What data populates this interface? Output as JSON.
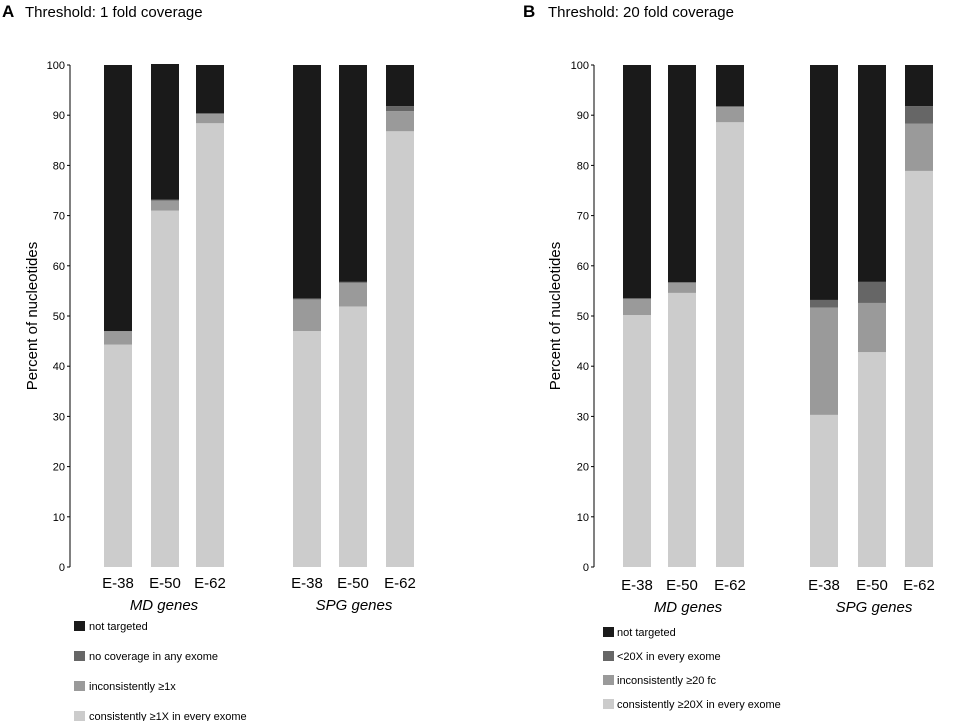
{
  "chart_data": [
    {
      "type": "bar",
      "stacked": true,
      "panel_letter": "A",
      "title": "Threshold: 1 fold coverage",
      "ylabel": "Percent of nucleotides",
      "xlabel": "",
      "ylim": [
        0,
        100
      ],
      "yticks": [
        0,
        10,
        20,
        30,
        40,
        50,
        60,
        70,
        80,
        90,
        100
      ],
      "grid": false,
      "legend_position": "bottom-left",
      "groups": [
        {
          "label": "MD genes",
          "categories": [
            "E-38",
            "E-50",
            "E-62"
          ]
        },
        {
          "label": "SPG genes",
          "categories": [
            "E-38",
            "E-50",
            "E-62"
          ]
        }
      ],
      "series": [
        {
          "name": "consistently ≥1X in every exome",
          "color": "#cccccc",
          "values": [
            44.3,
            71,
            88.4,
            47,
            51.9,
            86.8
          ]
        },
        {
          "name": "inconsistently ≥1x",
          "color": "#9a9a9a",
          "values": [
            2.7,
            2,
            1.8,
            6.3,
            4.7,
            4
          ]
        },
        {
          "name": "no coverage in any exome",
          "color": "#666666",
          "values": [
            0,
            0.2,
            0.2,
            0.2,
            0.2,
            1
          ]
        },
        {
          "name": "not targeted",
          "color": "#1a1a1a",
          "values": [
            53,
            27,
            9.6,
            46.5,
            43.2,
            8.2
          ]
        }
      ]
    },
    {
      "type": "bar",
      "stacked": true,
      "panel_letter": "B",
      "title": "Threshold: 20 fold coverage",
      "ylabel": "Percent of nucleotides",
      "xlabel": "",
      "ylim": [
        0,
        100
      ],
      "yticks": [
        0,
        10,
        20,
        30,
        40,
        50,
        60,
        70,
        80,
        90,
        100
      ],
      "grid": false,
      "legend_position": "bottom-left",
      "groups": [
        {
          "label": "MD genes",
          "categories": [
            "E-38",
            "E-50",
            "E-62"
          ]
        },
        {
          "label": "SPG genes",
          "categories": [
            "E-38",
            "E-50",
            "E-62"
          ]
        }
      ],
      "series": [
        {
          "name": "consistently ≥20X in every exome",
          "color": "#cccccc",
          "values": [
            50.2,
            54.6,
            88.6,
            30.3,
            42.8,
            78.9
          ]
        },
        {
          "name": "inconsistently ≥20 fc",
          "color": "#9a9a9a",
          "values": [
            3.3,
            2.1,
            3,
            21.4,
            9.8,
            9.4
          ]
        },
        {
          "name": "<20X in every exome",
          "color": "#666666",
          "values": [
            0,
            0,
            0.2,
            1.5,
            4.2,
            3.5
          ]
        },
        {
          "name": "not targeted",
          "color": "#1a1a1a",
          "values": [
            46.5,
            43.3,
            8.2,
            46.8,
            43.2,
            8.2
          ]
        }
      ]
    }
  ]
}
